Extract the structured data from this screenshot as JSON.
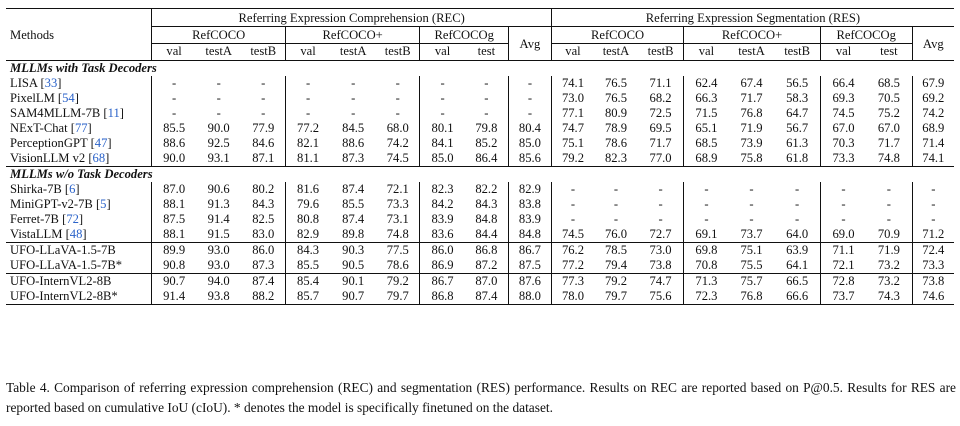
{
  "headers": {
    "methods": "Methods",
    "rec": "Referring Expression Comprehension (REC)",
    "res": "Referring Expression Segmentation (RES)",
    "groups": [
      "RefCOCO",
      "RefCOCO+",
      "RefCOCOg"
    ],
    "avg": "Avg",
    "sub": [
      "val",
      "testA",
      "testB",
      "val",
      "testA",
      "testB",
      "val",
      "test"
    ]
  },
  "section1": "MLLMs with Task Decoders",
  "section2": "MLLMs w/o Task Decoders",
  "rows": [
    {
      "name": "LISA",
      "cite": "33",
      "rec": [
        "-",
        "-",
        "-",
        "-",
        "-",
        "-",
        "-",
        "-",
        "-"
      ],
      "res": [
        "74.1",
        "76.5",
        "71.1",
        "62.4",
        "67.4",
        "56.5",
        "66.4",
        "68.5",
        "67.9"
      ]
    },
    {
      "name": "PixelLM",
      "cite": "54",
      "rec": [
        "-",
        "-",
        "-",
        "-",
        "-",
        "-",
        "-",
        "-",
        "-"
      ],
      "res": [
        "73.0",
        "76.5",
        "68.2",
        "66.3",
        "71.7",
        "58.3",
        "69.3",
        "70.5",
        "69.2"
      ]
    },
    {
      "name": "SAM4MLLM-7B",
      "cite": "11",
      "rec": [
        "-",
        "-",
        "-",
        "-",
        "-",
        "-",
        "-",
        "-",
        "-"
      ],
      "res": [
        "77.1",
        "80.9",
        "72.5",
        "71.5",
        "76.8",
        "64.7",
        "74.5",
        "75.2",
        "74.2"
      ]
    },
    {
      "name": "NExT-Chat",
      "cite": "77",
      "rec": [
        "85.5",
        "90.0",
        "77.9",
        "77.2",
        "84.5",
        "68.0",
        "80.1",
        "79.8",
        "80.4"
      ],
      "res": [
        "74.7",
        "78.9",
        "69.5",
        "65.1",
        "71.9",
        "56.7",
        "67.0",
        "67.0",
        "68.9"
      ]
    },
    {
      "name": "PerceptionGPT",
      "cite": "47",
      "rec": [
        "88.6",
        "92.5",
        "84.6",
        "82.1",
        "88.6",
        "74.2",
        "84.1",
        "85.2",
        "85.0"
      ],
      "res": [
        "75.1",
        "78.6",
        "71.7",
        "68.5",
        "73.9",
        "61.3",
        "70.3",
        "71.7",
        "71.4"
      ]
    },
    {
      "name": "VisionLLM v2",
      "cite": "68",
      "rec": [
        "90.0",
        "93.1",
        "87.1",
        "81.1",
        "87.3",
        "74.5",
        "85.0",
        "86.4",
        "85.6"
      ],
      "res": [
        "79.2",
        "82.3",
        "77.0",
        "68.9",
        "75.8",
        "61.8",
        "73.3",
        "74.8",
        "74.1"
      ]
    },
    {
      "name": "Shirka-7B",
      "cite": "6",
      "rec": [
        "87.0",
        "90.6",
        "80.2",
        "81.6",
        "87.4",
        "72.1",
        "82.3",
        "82.2",
        "82.9"
      ],
      "res": [
        "-",
        "-",
        "-",
        "-",
        "-",
        "-",
        "-",
        "-",
        "-"
      ]
    },
    {
      "name": "MiniGPT-v2-7B",
      "cite": "5",
      "rec": [
        "88.1",
        "91.3",
        "84.3",
        "79.6",
        "85.5",
        "73.3",
        "84.2",
        "84.3",
        "83.8"
      ],
      "res": [
        "-",
        "-",
        "-",
        "-",
        "-",
        "-",
        "-",
        "-",
        "-"
      ]
    },
    {
      "name": "Ferret-7B",
      "cite": "72",
      "rec": [
        "87.5",
        "91.4",
        "82.5",
        "80.8",
        "87.4",
        "73.1",
        "83.9",
        "84.8",
        "83.9"
      ],
      "res": [
        "-",
        "-",
        "-",
        "-",
        "-",
        "-",
        "-",
        "-",
        "-"
      ]
    },
    {
      "name": "VistaLLM",
      "cite": "48",
      "rec": [
        "88.1",
        "91.5",
        "83.0",
        "82.9",
        "89.8",
        "74.8",
        "83.6",
        "84.4",
        "84.8"
      ],
      "res": [
        "74.5",
        "76.0",
        "72.7",
        "69.1",
        "73.7",
        "64.0",
        "69.0",
        "70.9",
        "71.2"
      ]
    },
    {
      "name": "UFO-LLaVA-1.5-7B",
      "cite": "",
      "rec": [
        "89.9",
        "93.0",
        "86.0",
        "84.3",
        "90.3",
        "77.5",
        "86.0",
        "86.8",
        "86.7"
      ],
      "res": [
        "76.2",
        "78.5",
        "73.0",
        "69.8",
        "75.1",
        "63.9",
        "71.1",
        "71.9",
        "72.4"
      ]
    },
    {
      "name": "UFO-LLaVA-1.5-7B*",
      "cite": "",
      "rec": [
        "90.8",
        "93.0",
        "87.3",
        "85.5",
        "90.5",
        "78.6",
        "86.9",
        "87.2",
        "87.5"
      ],
      "res": [
        "77.2",
        "79.4",
        "73.8",
        "70.8",
        "75.5",
        "64.1",
        "72.1",
        "73.2",
        "73.3"
      ]
    },
    {
      "name": "UFO-InternVL2-8B",
      "cite": "",
      "rec": [
        "90.7",
        "94.0",
        "87.4",
        "85.4",
        "90.1",
        "79.2",
        "86.7",
        "87.0",
        "87.6"
      ],
      "res": [
        "77.3",
        "79.2",
        "74.7",
        "71.3",
        "75.7",
        "66.5",
        "72.8",
        "73.2",
        "73.8"
      ]
    },
    {
      "name": "UFO-InternVL2-8B*",
      "cite": "",
      "rec": [
        "91.4",
        "93.8",
        "88.2",
        "85.7",
        "90.7",
        "79.7",
        "86.8",
        "87.4",
        "88.0"
      ],
      "res": [
        "78.0",
        "79.7",
        "75.6",
        "72.3",
        "76.8",
        "66.6",
        "73.7",
        "74.3",
        "74.6"
      ]
    }
  ],
  "caption": "Table 4. Comparison of referring expression comprehension (REC) and segmentation (RES) performance. Results on REC are reported based on P@0.5. Results for RES are reported based on cumulative IoU (cIoU). * denotes the model is specifically finetuned on the dataset."
}
